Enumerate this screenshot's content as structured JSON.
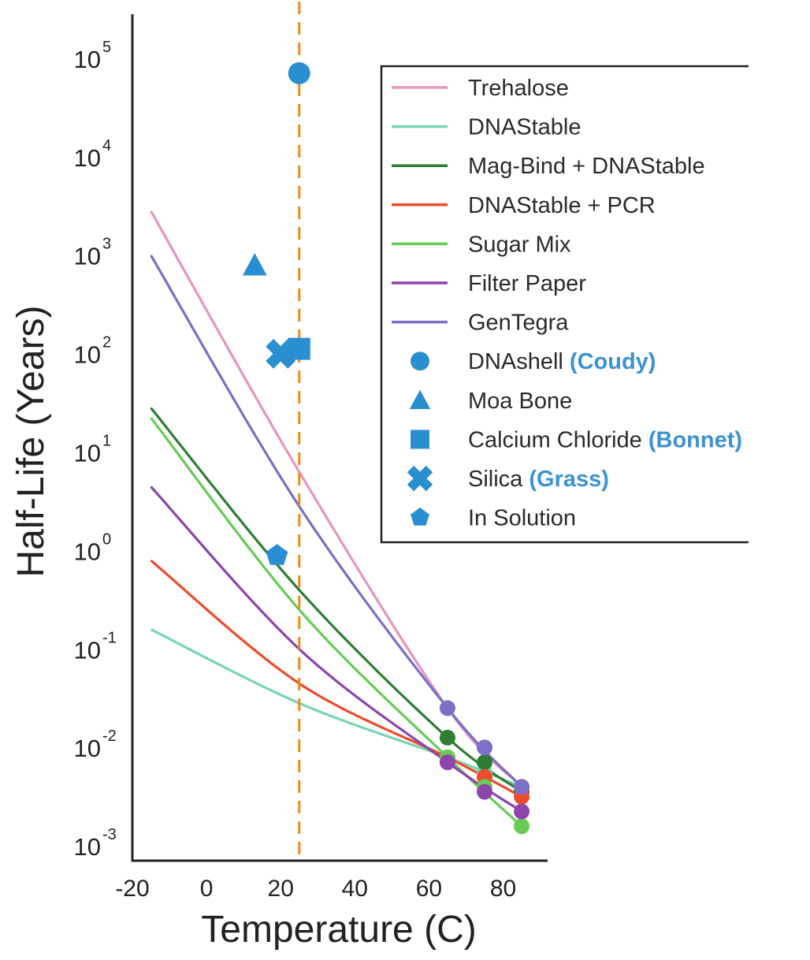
{
  "chart_data": {
    "type": "line",
    "xlabel": "Temperature (C)",
    "ylabel": "Half-Life (Years)",
    "xlim": [
      -20,
      92
    ],
    "ylim": [
      -3.2,
      5.4
    ],
    "yscale": "log",
    "x_ticks": [
      {
        "value": -20,
        "label": "-20"
      },
      {
        "value": 0,
        "label": "0"
      },
      {
        "value": 20,
        "label": "20"
      },
      {
        "value": 40,
        "label": "40"
      },
      {
        "value": 60,
        "label": "60"
      },
      {
        "value": 80,
        "label": "80"
      }
    ],
    "y_ticks": [
      {
        "exp": 5,
        "base": "10",
        "sup": "5"
      },
      {
        "exp": 4,
        "base": "10",
        "sup": "4"
      },
      {
        "exp": 3,
        "base": "10",
        "sup": "3"
      },
      {
        "exp": 2,
        "base": "10",
        "sup": "2"
      },
      {
        "exp": 1,
        "base": "10",
        "sup": "1"
      },
      {
        "exp": 0,
        "base": "10",
        "sup": "0"
      },
      {
        "exp": -1,
        "base": "10",
        "sup": "-1"
      },
      {
        "exp": -2,
        "base": "10",
        "sup": "-2"
      },
      {
        "exp": -3,
        "base": "10",
        "sup": "-3"
      }
    ],
    "reference_line": {
      "x": 25,
      "color": "#f08a1c",
      "style": "dashed"
    },
    "grid": false,
    "legend_position": "top-right",
    "series": [
      {
        "name": "Trehalose",
        "color": "#e396c0",
        "curve_x": [
          -15,
          25,
          65,
          85
        ],
        "curve_log10_y": [
          3.4,
          0.75,
          -1.65,
          -2.45
        ],
        "points": [
          {
            "x": 65,
            "log10_y": -1.65
          },
          {
            "x": 75,
            "log10_y": -2.05
          },
          {
            "x": 85,
            "log10_y": -2.45
          }
        ]
      },
      {
        "name": "DNAStable",
        "color": "#77d4b4",
        "curve_x": [
          -15,
          25,
          65,
          85
        ],
        "curve_log10_y": [
          -0.85,
          -1.6,
          -2.15,
          -2.45
        ],
        "points": [
          {
            "x": 65,
            "log10_y": -2.15
          },
          {
            "x": 75,
            "log10_y": -2.3
          },
          {
            "x": 85,
            "log10_y": -2.45
          }
        ]
      },
      {
        "name": "Mag-Bind + DNAStable",
        "color": "#2e7d32",
        "curve_x": [
          -15,
          25,
          65,
          85
        ],
        "curve_log10_y": [
          1.4,
          -0.45,
          -1.95,
          -2.5
        ],
        "points": [
          {
            "x": 65,
            "log10_y": -1.95
          },
          {
            "x": 75,
            "log10_y": -2.2
          },
          {
            "x": 85,
            "log10_y": -2.5
          }
        ]
      },
      {
        "name": "DNAStable + PCR",
        "color": "#ee4c2c",
        "curve_x": [
          -15,
          25,
          65,
          85
        ],
        "curve_log10_y": [
          -0.15,
          -1.4,
          -2.15,
          -2.55
        ],
        "points": [
          {
            "x": 65,
            "log10_y": -2.15
          },
          {
            "x": 75,
            "log10_y": -2.35
          },
          {
            "x": 85,
            "log10_y": -2.55
          }
        ]
      },
      {
        "name": "Sugar Mix",
        "color": "#66cc55",
        "curve_x": [
          -15,
          25,
          65,
          85
        ],
        "curve_log10_y": [
          1.3,
          -0.65,
          -2.15,
          -2.85
        ],
        "points": [
          {
            "x": 65,
            "log10_y": -2.15
          },
          {
            "x": 75,
            "log10_y": -2.45
          },
          {
            "x": 85,
            "log10_y": -2.85
          }
        ]
      },
      {
        "name": "Filter Paper",
        "color": "#8e44ad",
        "curve_x": [
          -15,
          25,
          65,
          85
        ],
        "curve_log10_y": [
          0.6,
          -1.05,
          -2.2,
          -2.7
        ],
        "points": [
          {
            "x": 65,
            "log10_y": -2.2
          },
          {
            "x": 75,
            "log10_y": -2.5
          },
          {
            "x": 85,
            "log10_y": -2.7
          }
        ]
      },
      {
        "name": "GenTegra",
        "color": "#7b6fc6",
        "curve_x": [
          -15,
          25,
          65,
          85
        ],
        "curve_log10_y": [
          2.95,
          0.4,
          -1.65,
          -2.45
        ],
        "points": [
          {
            "x": 65,
            "log10_y": -1.65
          },
          {
            "x": 75,
            "log10_y": -2.05
          },
          {
            "x": 85,
            "log10_y": -2.45
          }
        ]
      }
    ],
    "markers": [
      {
        "name": "DNAshell",
        "source": "(Coudy)",
        "shape": "circle",
        "x": 25,
        "log10_y": 4.8
      },
      {
        "name": "Moa Bone",
        "source": "",
        "shape": "triangle",
        "x": 13,
        "log10_y": 2.85
      },
      {
        "name": "Calcium Chloride",
        "source": "(Bonnet)",
        "shape": "square",
        "x": 25,
        "log10_y": 2.0
      },
      {
        "name": "Silica",
        "source": "(Grass)",
        "shape": "cross",
        "x": 20,
        "log10_y": 1.95
      },
      {
        "name": "In Solution",
        "source": "",
        "shape": "pentagon",
        "x": 19,
        "log10_y": -0.1
      }
    ],
    "marker_color": "#2a8fd0",
    "source_text_color": "#3d92d1"
  }
}
